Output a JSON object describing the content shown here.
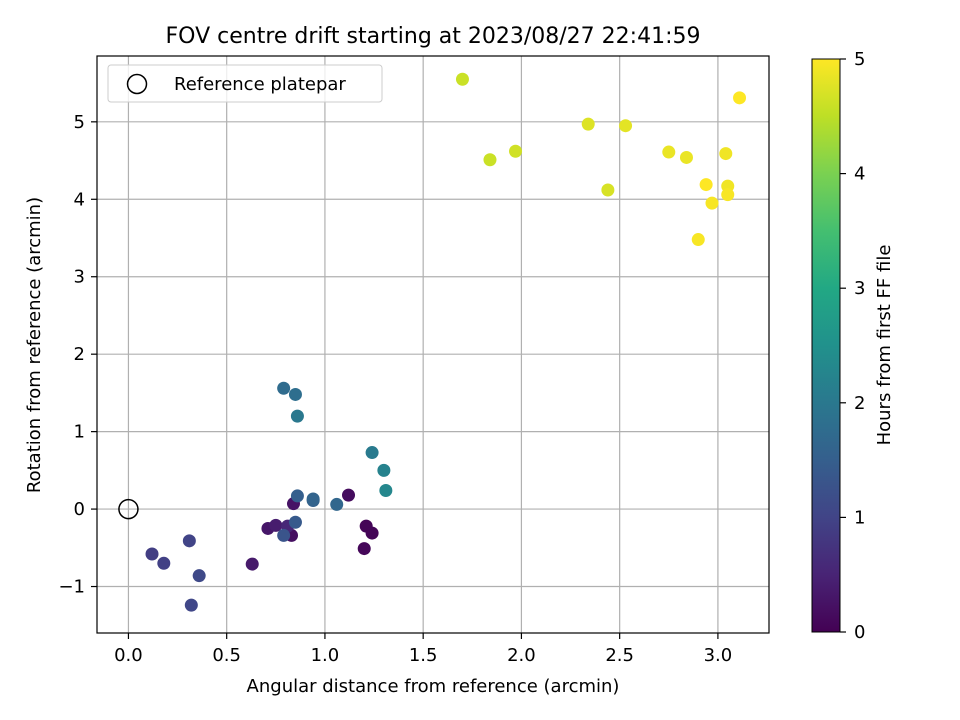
{
  "chart_data": {
    "type": "scatter",
    "title": "FOV centre drift starting at 2023/08/27 22:41:59",
    "xlabel": "Angular distance from reference (arcmin)",
    "ylabel": "Rotation from reference (arcmin)",
    "xlim": [
      -0.16,
      3.26
    ],
    "ylim": [
      -1.6,
      5.85
    ],
    "xticks": [
      0.0,
      0.5,
      1.0,
      1.5,
      2.0,
      2.5,
      3.0
    ],
    "xtick_labels": [
      "0.0",
      "0.5",
      "1.0",
      "1.5",
      "2.0",
      "2.5",
      "3.0"
    ],
    "yticks": [
      -1,
      0,
      1,
      2,
      3,
      4,
      5
    ],
    "ytick_labels": [
      "−1",
      "0",
      "1",
      "2",
      "3",
      "4",
      "5"
    ],
    "grid": true,
    "legend": {
      "entries": [
        "Reference platepar"
      ],
      "placement": "upper left"
    },
    "reference_point": {
      "x": 0.0,
      "y": 0.0,
      "label": "Reference platepar"
    },
    "colorbar": {
      "label": "Hours from first FF file",
      "min": 0,
      "max": 5,
      "ticks": [
        0,
        1,
        2,
        3,
        4,
        5
      ],
      "tick_labels": [
        "0",
        "1",
        "2",
        "3",
        "4",
        "5"
      ],
      "colormap": "viridis"
    },
    "points": [
      {
        "x": 1.21,
        "y": -0.22,
        "c": 0.05
      },
      {
        "x": 1.24,
        "y": -0.31,
        "c": 0.05
      },
      {
        "x": 1.2,
        "y": -0.51,
        "c": 0.08
      },
      {
        "x": 1.12,
        "y": 0.18,
        "c": 0.15
      },
      {
        "x": 0.83,
        "y": -0.34,
        "c": 0.2
      },
      {
        "x": 0.84,
        "y": 0.07,
        "c": 0.25
      },
      {
        "x": 0.71,
        "y": -0.25,
        "c": 0.3
      },
      {
        "x": 0.63,
        "y": -0.71,
        "c": 0.35
      },
      {
        "x": 0.75,
        "y": -0.21,
        "c": 0.4
      },
      {
        "x": 0.81,
        "y": -0.22,
        "c": 0.55
      },
      {
        "x": 0.12,
        "y": -0.58,
        "c": 0.9
      },
      {
        "x": 0.18,
        "y": -0.7,
        "c": 0.95
      },
      {
        "x": 0.31,
        "y": -0.41,
        "c": 1.0
      },
      {
        "x": 0.32,
        "y": -1.24,
        "c": 1.05
      },
      {
        "x": 0.36,
        "y": -0.86,
        "c": 1.1
      },
      {
        "x": 0.79,
        "y": -0.34,
        "c": 1.3
      },
      {
        "x": 0.85,
        "y": -0.17,
        "c": 1.4
      },
      {
        "x": 0.86,
        "y": 0.17,
        "c": 1.5
      },
      {
        "x": 0.94,
        "y": 0.11,
        "c": 1.55
      },
      {
        "x": 0.94,
        "y": 0.13,
        "c": 1.6
      },
      {
        "x": 1.06,
        "y": 0.06,
        "c": 1.65
      },
      {
        "x": 0.79,
        "y": 1.56,
        "c": 1.75
      },
      {
        "x": 0.85,
        "y": 1.48,
        "c": 1.8
      },
      {
        "x": 0.86,
        "y": 1.2,
        "c": 2.0
      },
      {
        "x": 1.24,
        "y": 0.73,
        "c": 2.05
      },
      {
        "x": 1.3,
        "y": 0.5,
        "c": 2.2
      },
      {
        "x": 1.31,
        "y": 0.24,
        "c": 2.3
      },
      {
        "x": 1.7,
        "y": 5.55,
        "c": 4.6
      },
      {
        "x": 1.84,
        "y": 4.51,
        "c": 4.6
      },
      {
        "x": 1.97,
        "y": 4.62,
        "c": 4.65
      },
      {
        "x": 2.34,
        "y": 4.97,
        "c": 4.75
      },
      {
        "x": 2.44,
        "y": 4.12,
        "c": 4.7
      },
      {
        "x": 2.53,
        "y": 4.95,
        "c": 4.8
      },
      {
        "x": 2.75,
        "y": 4.61,
        "c": 4.85
      },
      {
        "x": 2.84,
        "y": 4.54,
        "c": 4.85
      },
      {
        "x": 2.9,
        "y": 3.48,
        "c": 4.95
      },
      {
        "x": 2.94,
        "y": 4.19,
        "c": 5.0
      },
      {
        "x": 2.97,
        "y": 3.95,
        "c": 4.95
      },
      {
        "x": 3.04,
        "y": 4.59,
        "c": 4.9
      },
      {
        "x": 3.05,
        "y": 4.17,
        "c": 4.9
      },
      {
        "x": 3.05,
        "y": 4.06,
        "c": 4.95
      },
      {
        "x": 3.11,
        "y": 5.31,
        "c": 5.0
      }
    ]
  }
}
